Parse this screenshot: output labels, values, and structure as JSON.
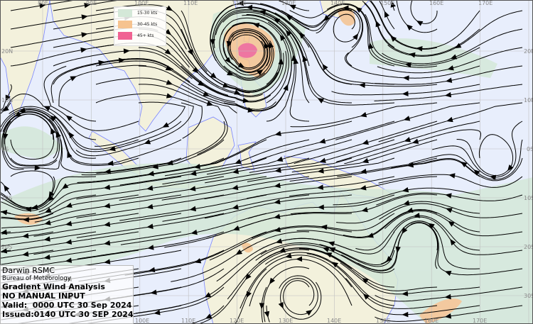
{
  "colors": {
    "ocean": "#e8eefc",
    "land": "#f3f1dc",
    "coast": "#7b86ff",
    "band_15_30": "#d4e8d8",
    "band_30_45": "#f6c38f",
    "band_45_plus": "#f06292",
    "grid": "#bfbfbf",
    "streamline": "#000000"
  },
  "legend": {
    "items": [
      {
        "label": "15-30 kts",
        "color": "#d4e8d8"
      },
      {
        "label": "30-45 kts",
        "color": "#f6c38f"
      },
      {
        "label": "45+ kts",
        "color": "#f06292"
      }
    ]
  },
  "axes": {
    "top_lon": [
      "80E",
      "90E",
      "100E",
      "110E",
      "120E",
      "130E",
      "140E",
      "150E",
      "160E",
      "170E"
    ],
    "bottom_lon": [
      "100E",
      "110E",
      "120E",
      "130E",
      "140E",
      "150E",
      "160E",
      "170E"
    ],
    "left_lat": [
      "20N",
      "10N",
      "0S",
      "10S",
      "20S"
    ],
    "right_lat": [
      "20N",
      "10N",
      "0S",
      "10S",
      "20S",
      "30S"
    ]
  },
  "info": {
    "center": "Darwin RSMC",
    "agency": "Bureau of Meteorology",
    "product": "Gradient Wind Analysis",
    "note": "NO MANUAL INPUT",
    "valid": "Valid:  0000 UTC 30 Sep 2024",
    "issued": "Issued:0140 UTC 30 SEP 2024"
  }
}
